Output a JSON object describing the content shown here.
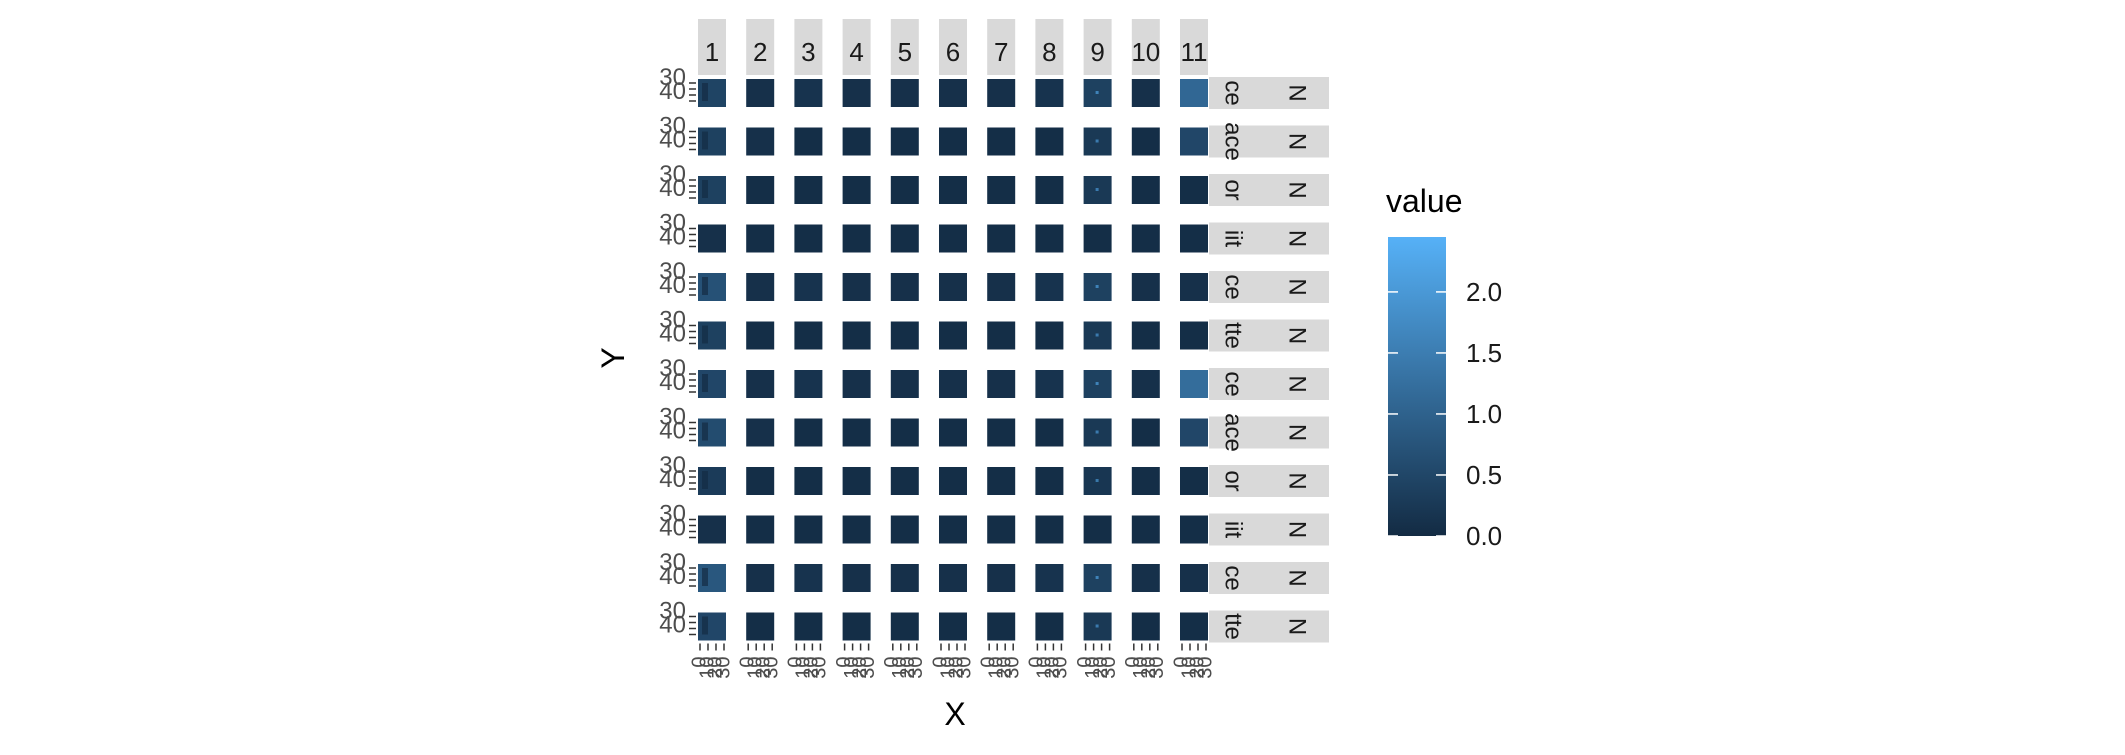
{
  "chart_data": {
    "type": "heatmap",
    "layout": "facet_grid",
    "xlabel": "X",
    "ylabel": "Y",
    "col_facets": [
      "1",
      "2",
      "3",
      "4",
      "5",
      "6",
      "7",
      "8",
      "9",
      "10",
      "11"
    ],
    "row_facets": [
      {
        "strip_a": "ce",
        "strip_b": "N"
      },
      {
        "strip_a": "ace",
        "strip_b": "N"
      },
      {
        "strip_a": "or",
        "strip_b": "N"
      },
      {
        "strip_a": "iit",
        "strip_b": "N"
      },
      {
        "strip_a": "ce",
        "strip_b": "N"
      },
      {
        "strip_a": "tte",
        "strip_b": "N"
      },
      {
        "strip_a": "ce",
        "strip_b": "N"
      },
      {
        "strip_a": "ace",
        "strip_b": "N"
      },
      {
        "strip_a": "or",
        "strip_b": "N"
      },
      {
        "strip_a": "iit",
        "strip_b": "N"
      },
      {
        "strip_a": "ce",
        "strip_b": "N"
      },
      {
        "strip_a": "tte",
        "strip_b": "N"
      }
    ],
    "y_tick_labels": [
      "30",
      "40"
    ],
    "x_tick_labels": [
      "0",
      "10",
      "20",
      "30"
    ],
    "legend": {
      "title": "value",
      "position": "right",
      "ticks": [
        "0.0",
        "0.5",
        "1.0",
        "1.5",
        "2.0"
      ],
      "range": [
        0,
        2.45
      ],
      "low_color": "#132b43",
      "high_color": "#56b1f7"
    },
    "panel_mean_values": [
      [
        0.45,
        0.1,
        0.15,
        0.1,
        0.1,
        0.1,
        0.1,
        0.15,
        0.4,
        0.1,
        1.1
      ],
      [
        0.4,
        0.1,
        0.05,
        0.05,
        0.05,
        0.05,
        0.05,
        0.05,
        0.25,
        0.05,
        0.5
      ],
      [
        0.4,
        0.05,
        0.05,
        0.05,
        0.05,
        0.05,
        0.05,
        0.05,
        0.25,
        0.05,
        0.05
      ],
      [
        0.1,
        0.05,
        0.05,
        0.05,
        0.05,
        0.05,
        0.05,
        0.05,
        0.05,
        0.05,
        0.05
      ],
      [
        0.7,
        0.1,
        0.15,
        0.1,
        0.1,
        0.1,
        0.1,
        0.15,
        0.4,
        0.1,
        0.1
      ],
      [
        0.4,
        0.05,
        0.05,
        0.05,
        0.05,
        0.05,
        0.05,
        0.05,
        0.25,
        0.05,
        0.05
      ],
      [
        0.5,
        0.1,
        0.15,
        0.1,
        0.1,
        0.1,
        0.1,
        0.15,
        0.4,
        0.1,
        1.2
      ],
      [
        0.6,
        0.1,
        0.05,
        0.05,
        0.05,
        0.05,
        0.05,
        0.05,
        0.25,
        0.05,
        0.5
      ],
      [
        0.3,
        0.05,
        0.05,
        0.05,
        0.05,
        0.05,
        0.05,
        0.05,
        0.2,
        0.05,
        0.05
      ],
      [
        0.1,
        0.05,
        0.05,
        0.05,
        0.05,
        0.05,
        0.05,
        0.05,
        0.05,
        0.05,
        0.05
      ],
      [
        0.8,
        0.1,
        0.15,
        0.1,
        0.1,
        0.1,
        0.1,
        0.15,
        0.4,
        0.1,
        0.1
      ],
      [
        0.5,
        0.05,
        0.05,
        0.05,
        0.05,
        0.05,
        0.05,
        0.05,
        0.25,
        0.05,
        0.05
      ]
    ]
  }
}
